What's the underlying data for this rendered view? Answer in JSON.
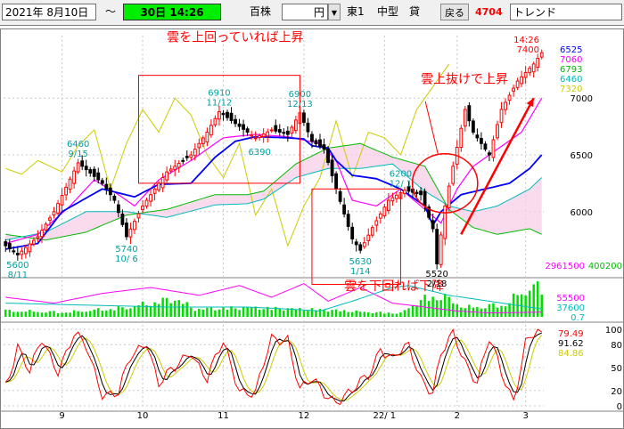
{
  "toolbar": {
    "date": "2021年 8月10日",
    "range_mark": "～",
    "period_time": "30日 14:26",
    "unit": "百株",
    "currency": "円",
    "dropdown_arrow": "▼",
    "market": "東1",
    "size": "中型",
    "credit": "貸",
    "back_label": "戻る",
    "code": "4704",
    "trend_label": "トレンド"
  },
  "colors": {
    "price_up": "#ff0000",
    "price_down": "#000000",
    "conversion_line": "#0000ff",
    "base_line": "#ff00ff",
    "span_a": "#00bb00",
    "span_b": "#00bbbb",
    "lagging_span": "#cccc00",
    "annotation": "#ff0000",
    "hi_lo_label": "#00a0a0",
    "volume": "#00dd00"
  },
  "chart_data": [
    {
      "type": "candlestick",
      "title": "",
      "x_tick_labels": [
        "9",
        "10",
        "11",
        "12",
        "22/ 1",
        "2",
        "3"
      ],
      "ylim": [
        5450,
        7550
      ],
      "y_tick_labels": [
        "7000",
        "6500",
        "6000"
      ],
      "y_ticks": [
        7000,
        6500,
        6000
      ],
      "grid": true,
      "legend_values": [
        {
          "value": "6525",
          "color": "#0000ff"
        },
        {
          "value": "7060",
          "color": "#ff00ff"
        },
        {
          "value": "6793",
          "color": "#00bb00"
        },
        {
          "value": "6460",
          "color": "#00bbbb"
        },
        {
          "value": "7320",
          "color": "#cccc00"
        }
      ],
      "header_labels": [
        {
          "text": "14:26",
          "color": "#ff0000"
        },
        {
          "text": "7400",
          "color": "#ff0000"
        }
      ],
      "price_labels": [
        {
          "date": "8/11",
          "price": "5600",
          "x": 3,
          "y": 5600,
          "color": "#00a0a0"
        },
        {
          "date": "9/15",
          "price": "6460",
          "x": 18,
          "y": 6460,
          "color": "#00a0a0"
        },
        {
          "date": "10/ 6",
          "price": "5740",
          "x": 30,
          "y": 5740,
          "color": "#00a0a0"
        },
        {
          "date": "11/12",
          "price": "6910",
          "x": 53,
          "y": 6910,
          "color": "#00a0a0"
        },
        {
          "date": "12/13",
          "price": "6900",
          "x": 73,
          "y": 6900,
          "color": "#00a0a0"
        },
        {
          "date": "",
          "price": "6390",
          "x": 63,
          "y": 6390,
          "color": "#00a0a0"
        },
        {
          "date": "12/ 1",
          "price": "6200",
          "x": 98,
          "y": 6200,
          "color": "#00a0a0"
        },
        {
          "date": "1/14",
          "price": "5630",
          "x": 88,
          "y": 5630,
          "color": "#00a0a0"
        },
        {
          "date": "2/18",
          "price": "5520",
          "x": 107,
          "y": 5520,
          "color": "#000000"
        }
      ],
      "annotations": [
        {
          "text": "雲を上回っていれば上昇",
          "x": 40,
          "y": 7500
        },
        {
          "text": "雲上抜けで上昇",
          "x": 103,
          "y": 7130
        },
        {
          "text": "雲を下回れば下降",
          "x": 84,
          "y": 5310
        }
      ],
      "highlight_boxes": [
        {
          "x0": 33,
          "x1": 73,
          "y0": 6250,
          "y1": 7200
        },
        {
          "x0": 76,
          "x1": 98,
          "y0": 5360,
          "y1": 6200
        }
      ],
      "highlight_circle": {
        "x": 109,
        "y": 6250,
        "rx": 6,
        "ry": 260
      },
      "trend_arrow": {
        "x0": 113,
        "y0": 5800,
        "x1": 131,
        "y1": 7000
      },
      "series": [
        {
          "type": "ohlc"
        },
        {
          "type": "line",
          "color": "#0000ff"
        },
        {
          "type": "line",
          "color": "#ff00ff"
        },
        {
          "type": "line",
          "color": "#00bb00"
        },
        {
          "type": "line",
          "color": "#00bbbb"
        },
        {
          "type": "line",
          "color": "#cccc00"
        }
      ],
      "ohlc_knots": [
        [
          0,
          5700
        ],
        [
          3,
          5620
        ],
        [
          8,
          5780
        ],
        [
          12,
          6000
        ],
        [
          18,
          6430
        ],
        [
          24,
          6250
        ],
        [
          27,
          6100
        ],
        [
          30,
          5780
        ],
        [
          34,
          6050
        ],
        [
          40,
          6350
        ],
        [
          46,
          6500
        ],
        [
          50,
          6700
        ],
        [
          53,
          6880
        ],
        [
          58,
          6750
        ],
        [
          62,
          6650
        ],
        [
          66,
          6720
        ],
        [
          70,
          6680
        ],
        [
          73,
          6870
        ],
        [
          76,
          6620
        ],
        [
          79,
          6550
        ],
        [
          82,
          6200
        ],
        [
          86,
          5760
        ],
        [
          88,
          5660
        ],
        [
          91,
          5860
        ],
        [
          95,
          6100
        ],
        [
          99,
          6190
        ],
        [
          103,
          6150
        ],
        [
          106,
          5850
        ],
        [
          107,
          5540
        ],
        [
          109,
          6050
        ],
        [
          111,
          6400
        ],
        [
          114,
          6900
        ],
        [
          116,
          6700
        ],
        [
          120,
          6500
        ],
        [
          123,
          6900
        ],
        [
          127,
          7150
        ],
        [
          131,
          7300
        ],
        [
          133,
          7400
        ]
      ],
      "conversion_line": [
        [
          0,
          5670
        ],
        [
          8,
          5720
        ],
        [
          14,
          6000
        ],
        [
          24,
          6200
        ],
        [
          32,
          6130
        ],
        [
          38,
          6240
        ],
        [
          46,
          6250
        ],
        [
          52,
          6480
        ],
        [
          57,
          6620
        ],
        [
          62,
          6660
        ],
        [
          70,
          6650
        ],
        [
          74,
          6640
        ],
        [
          76,
          6580
        ],
        [
          80,
          6560
        ],
        [
          82,
          6450
        ],
        [
          86,
          6320
        ],
        [
          92,
          6290
        ],
        [
          98,
          6200
        ],
        [
          104,
          6050
        ],
        [
          106,
          5880
        ],
        [
          108,
          6000
        ],
        [
          113,
          6150
        ],
        [
          119,
          6200
        ],
        [
          125,
          6250
        ],
        [
          130,
          6380
        ],
        [
          133,
          6500
        ]
      ],
      "base_line": [
        [
          0,
          5720
        ],
        [
          8,
          5800
        ],
        [
          16,
          6050
        ],
        [
          22,
          6280
        ],
        [
          28,
          6150
        ],
        [
          32,
          6050
        ],
        [
          38,
          6280
        ],
        [
          46,
          6450
        ],
        [
          54,
          6650
        ],
        [
          62,
          6680
        ],
        [
          70,
          6660
        ],
        [
          78,
          6600
        ],
        [
          82,
          6450
        ],
        [
          86,
          6100
        ],
        [
          92,
          6050
        ],
        [
          98,
          6200
        ],
        [
          104,
          6020
        ],
        [
          108,
          5900
        ],
        [
          112,
          6200
        ],
        [
          116,
          6400
        ],
        [
          122,
          6550
        ],
        [
          128,
          6700
        ],
        [
          133,
          7000
        ]
      ],
      "span_a": [
        [
          0,
          5800
        ],
        [
          10,
          5750
        ],
        [
          20,
          5820
        ],
        [
          30,
          5970
        ],
        [
          40,
          6020
        ],
        [
          52,
          6150
        ],
        [
          60,
          6150
        ],
        [
          64,
          6180
        ],
        [
          72,
          6420
        ],
        [
          80,
          6560
        ],
        [
          88,
          6600
        ],
        [
          96,
          6480
        ],
        [
          104,
          6400
        ],
        [
          110,
          6020
        ],
        [
          116,
          5860
        ],
        [
          122,
          5800
        ],
        [
          130,
          5850
        ],
        [
          133,
          5800
        ]
      ],
      "span_b": [
        [
          0,
          5750
        ],
        [
          10,
          5820
        ],
        [
          20,
          6000
        ],
        [
          30,
          6000
        ],
        [
          40,
          5950
        ],
        [
          52,
          6060
        ],
        [
          60,
          6070
        ],
        [
          64,
          6110
        ],
        [
          72,
          6300
        ],
        [
          80,
          6380
        ],
        [
          88,
          6380
        ],
        [
          96,
          6420
        ],
        [
          104,
          6180
        ],
        [
          110,
          6050
        ],
        [
          116,
          6000
        ],
        [
          122,
          6050
        ],
        [
          130,
          6200
        ],
        [
          133,
          6300
        ]
      ],
      "lagging_span": [
        [
          0,
          6380
        ],
        [
          4,
          6330
        ],
        [
          8,
          6450
        ],
        [
          14,
          6350
        ],
        [
          18,
          6580
        ],
        [
          22,
          6720
        ],
        [
          26,
          6200
        ],
        [
          30,
          6600
        ],
        [
          34,
          6900
        ],
        [
          38,
          6700
        ],
        [
          42,
          7000
        ],
        [
          46,
          6850
        ],
        [
          50,
          6500
        ],
        [
          54,
          6300
        ],
        [
          58,
          6600
        ],
        [
          62,
          5970
        ],
        [
          66,
          6200
        ],
        [
          70,
          5700
        ],
        [
          74,
          6050
        ],
        [
          78,
          6300
        ],
        [
          82,
          6800
        ],
        [
          86,
          6300
        ],
        [
          90,
          6700
        ],
        [
          94,
          6650
        ],
        [
          98,
          6500
        ],
        [
          102,
          6900
        ],
        [
          106,
          7100
        ],
        [
          108,
          7200
        ],
        [
          110,
          7300
        ]
      ]
    },
    {
      "type": "bar",
      "title": "",
      "legend_values": [
        {
          "value": "2961500",
          "color": "#ff00ff"
        },
        {
          "value": "400200",
          "color": "#00bb00"
        },
        {
          "value": "55500",
          "color": "#ff00ff"
        },
        {
          "value": "37600",
          "color": "#00bbbb"
        },
        {
          "value": "0.7",
          "color": "#00bbbb"
        }
      ],
      "series": [
        {
          "type": "bar",
          "color": "#00dd00"
        },
        {
          "type": "line",
          "color": "#ff00ff"
        },
        {
          "type": "line",
          "color": "#00bbbb"
        }
      ],
      "volume_knots": [
        [
          0,
          20
        ],
        [
          15,
          15
        ],
        [
          30,
          30
        ],
        [
          42,
          60
        ],
        [
          47,
          25
        ],
        [
          60,
          30
        ],
        [
          75,
          25
        ],
        [
          84,
          20
        ],
        [
          90,
          15
        ],
        [
          98,
          12
        ],
        [
          103,
          55
        ],
        [
          108,
          70
        ],
        [
          114,
          30
        ],
        [
          124,
          40
        ],
        [
          130,
          100
        ],
        [
          133,
          90
        ]
      ],
      "volume_avg_pink": [
        [
          0,
          50
        ],
        [
          12,
          35
        ],
        [
          24,
          60
        ],
        [
          36,
          75
        ],
        [
          48,
          55
        ],
        [
          58,
          80
        ],
        [
          66,
          50
        ],
        [
          74,
          85
        ],
        [
          80,
          40
        ],
        [
          88,
          75
        ],
        [
          96,
          35
        ],
        [
          104,
          25
        ],
        [
          112,
          15
        ],
        [
          120,
          10
        ],
        [
          133,
          12
        ]
      ],
      "volume_avg_cyan": [
        [
          0,
          35
        ],
        [
          20,
          30
        ],
        [
          40,
          25
        ],
        [
          60,
          25
        ],
        [
          70,
          20
        ],
        [
          78,
          15
        ],
        [
          86,
          40
        ],
        [
          96,
          75
        ],
        [
          100,
          80
        ],
        [
          110,
          55
        ],
        [
          120,
          40
        ],
        [
          133,
          20
        ]
      ]
    },
    {
      "type": "line",
      "title": "",
      "ylim": [
        0,
        100
      ],
      "y_tick_labels": [
        "100",
        "80",
        "50",
        "20",
        "0"
      ],
      "y_ticks": [
        100,
        80,
        50,
        20,
        0
      ],
      "legend_values": [
        {
          "value": "79.49",
          "color": "#ff0000"
        },
        {
          "value": "91.62",
          "color": "#000000"
        },
        {
          "value": "84.86",
          "color": "#cccc00"
        }
      ],
      "series": [
        {
          "type": "line",
          "color": "#ff0000"
        },
        {
          "type": "line",
          "color": "#000000"
        },
        {
          "type": "line",
          "color": "#cccc00"
        }
      ],
      "osc_knots": [
        [
          0,
          30
        ],
        [
          3,
          80
        ],
        [
          6,
          40
        ],
        [
          9,
          85
        ],
        [
          13,
          50
        ],
        [
          17,
          90
        ],
        [
          20,
          75
        ],
        [
          24,
          20
        ],
        [
          28,
          15
        ],
        [
          31,
          60
        ],
        [
          35,
          88
        ],
        [
          38,
          30
        ],
        [
          42,
          45
        ],
        [
          46,
          75
        ],
        [
          50,
          35
        ],
        [
          54,
          80
        ],
        [
          58,
          25
        ],
        [
          62,
          15
        ],
        [
          66,
          85
        ],
        [
          70,
          92
        ],
        [
          73,
          20
        ],
        [
          76,
          30
        ],
        [
          79,
          18
        ],
        [
          82,
          10
        ],
        [
          86,
          15
        ],
        [
          90,
          40
        ],
        [
          93,
          80
        ],
        [
          96,
          60
        ],
        [
          100,
          75
        ],
        [
          103,
          40
        ],
        [
          106,
          20
        ],
        [
          108,
          65
        ],
        [
          111,
          90
        ],
        [
          114,
          60
        ],
        [
          117,
          35
        ],
        [
          120,
          85
        ],
        [
          123,
          40
        ],
        [
          126,
          10
        ],
        [
          129,
          85
        ],
        [
          132,
          95
        ],
        [
          133,
          85
        ]
      ]
    }
  ]
}
